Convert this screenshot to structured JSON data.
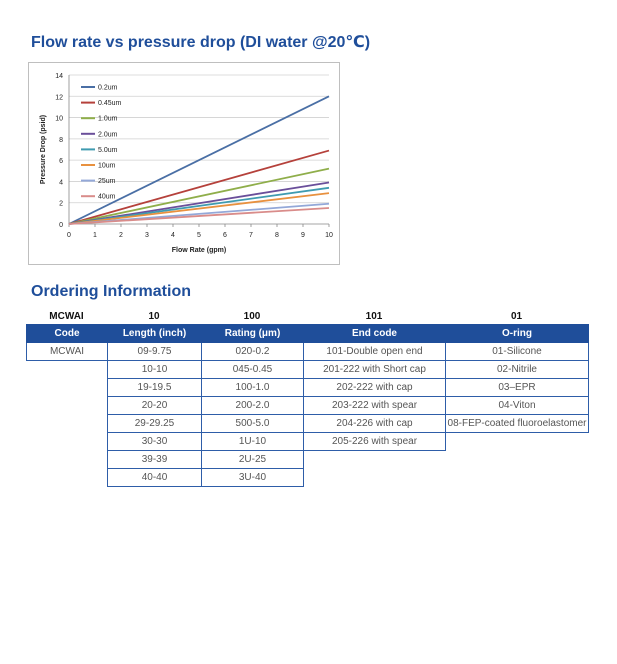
{
  "chart_section": {
    "heading": "Flow rate vs pressure drop (DI water @20℃)"
  },
  "chart_data": {
    "type": "line",
    "title": "",
    "xlabel": "Flow Rate (gpm)",
    "ylabel": "Pressure Drop (psid)",
    "xlim": [
      0,
      10
    ],
    "ylim": [
      0,
      14
    ],
    "x_ticks": [
      0,
      1,
      2,
      3,
      4,
      5,
      6,
      7,
      8,
      9,
      10
    ],
    "y_ticks": [
      0,
      2,
      4,
      6,
      8,
      10,
      12,
      14
    ],
    "grid": "horizontal",
    "legend_position": "top-left",
    "x": [
      0,
      10
    ],
    "series": [
      {
        "name": "0.2um",
        "color": "#4a6fa5",
        "values": [
          0,
          12.0
        ]
      },
      {
        "name": "0.45um",
        "color": "#b5413b",
        "values": [
          0,
          6.9
        ]
      },
      {
        "name": "1.0um",
        "color": "#8fae4a",
        "values": [
          0,
          5.2
        ]
      },
      {
        "name": "2.0um",
        "color": "#6a4f9a",
        "values": [
          0,
          3.9
        ]
      },
      {
        "name": "5.0um",
        "color": "#3f9bb0",
        "values": [
          0,
          3.4
        ]
      },
      {
        "name": "10um",
        "color": "#e8913f",
        "values": [
          0,
          2.9
        ]
      },
      {
        "name": "25um",
        "color": "#93a8d8",
        "values": [
          0,
          1.9
        ]
      },
      {
        "name": "40um",
        "color": "#d98c8a",
        "values": [
          0,
          1.5
        ]
      }
    ]
  },
  "ordering": {
    "heading": "Ordering Information",
    "top_codes": [
      "MCWAI",
      "10",
      "100",
      "101",
      "01"
    ],
    "headers": [
      "Code",
      "Length (inch)",
      "Rating  (μm)",
      "End code",
      "O-ring"
    ],
    "columns": {
      "code": [
        "MCWAI"
      ],
      "length": [
        "09-9.75",
        "10-10",
        "19-19.5",
        "20-20",
        "29-29.25",
        "30-30",
        "39-39",
        "40-40"
      ],
      "rating": [
        "020-0.2",
        "045-0.45",
        "100-1.0",
        "200-2.0",
        "500-5.0",
        "1U-10",
        "2U-25",
        "3U-40"
      ],
      "end_code": [
        "101-Double open end",
        "201-222 with Short cap",
        "202-222 with cap",
        "203-222 with spear",
        "204-226 with cap",
        "205-226 with spear"
      ],
      "oring": [
        "01-Silicone",
        "02-Nitrile",
        "03–EPR",
        "04-Viton",
        "08-FEP-coated fluoroelastomer"
      ]
    }
  }
}
